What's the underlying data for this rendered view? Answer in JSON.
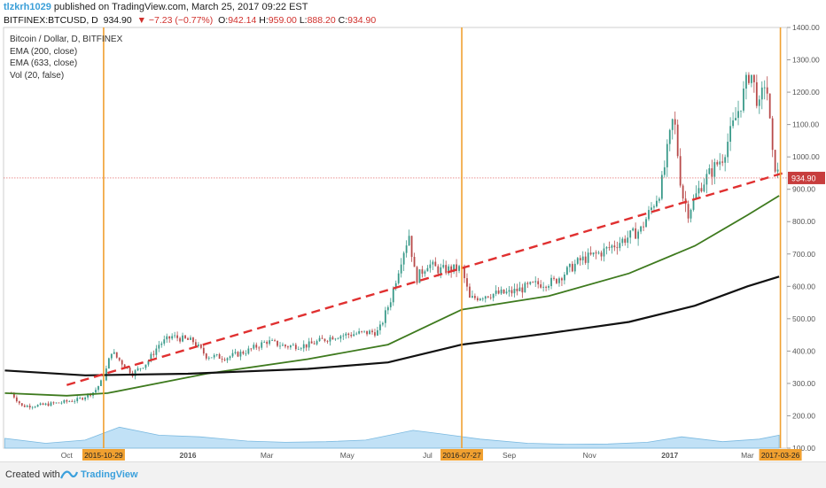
{
  "header": {
    "author": "tlzkrh1029",
    "published_text": "published on TradingView.com, March 25, 2017 09:22 EST",
    "symbol": "BITFINEX:BTCUSD, D",
    "last": "934.90",
    "change": "▼ −7.23 (−0.77%)",
    "o_label": "O:",
    "o_value": "942.14",
    "h_label": "H:",
    "h_value": "959.00",
    "l_label": "L:",
    "l_value": "888.20",
    "c_label": "C:",
    "c_value": "934.90"
  },
  "legend": {
    "title": "Bitcoin / Dollar, D, BITFINEX",
    "ema200": "EMA (200, close)",
    "ema633": "EMA (633, close)",
    "vol": "Vol (20, false)"
  },
  "footer": {
    "created_with": "Created with",
    "brand": "TradingView"
  },
  "colors": {
    "up": "#3a9a8a",
    "down": "#b84a4a",
    "ema200": "#3e7a1e",
    "ema633": "#111111",
    "trend": "#e03030",
    "marker": "#f0a030",
    "price_line": "#e05050",
    "volume": "#8ec9ee"
  },
  "chart_data": {
    "type": "candlestick",
    "title": "Bitcoin / Dollar, D, BITFINEX",
    "ylim": [
      100,
      1400
    ],
    "y_ticks": [
      "1400.00",
      "1300.00",
      "1200.00",
      "1100.00",
      "1000.00",
      "900.00",
      "800.00",
      "700.00",
      "600.00",
      "500.00",
      "400.00",
      "300.00",
      "200.00",
      "100.00"
    ],
    "x_ticks": [
      "Oct",
      "2015-10-29",
      "2016",
      "Mar",
      "May",
      "Jul",
      "2016-07-27",
      "Sep",
      "Nov",
      "2017",
      "Mar",
      "2017-03-26"
    ],
    "last_price_label": "934.90",
    "vertical_markers": [
      "2015-10-29",
      "2016-07-27",
      "2017-03-26"
    ],
    "price_path": [
      [
        "2015-08-20",
        270
      ],
      [
        "2015-08-28",
        230
      ],
      [
        "2015-09-10",
        232
      ],
      [
        "2015-09-25",
        240
      ],
      [
        "2015-10-10",
        250
      ],
      [
        "2015-10-22",
        275
      ],
      [
        "2015-10-29",
        315
      ],
      [
        "2015-11-04",
        400
      ],
      [
        "2015-11-08",
        380
      ],
      [
        "2015-11-20",
        330
      ],
      [
        "2015-12-01",
        365
      ],
      [
        "2015-12-10",
        420
      ],
      [
        "2015-12-20",
        445
      ],
      [
        "2016-01-05",
        430
      ],
      [
        "2016-01-15",
        385
      ],
      [
        "2016-01-30",
        380
      ],
      [
        "2016-02-15",
        400
      ],
      [
        "2016-03-01",
        430
      ],
      [
        "2016-03-15",
        415
      ],
      [
        "2016-04-01",
        418
      ],
      [
        "2016-04-20",
        445
      ],
      [
        "2016-05-10",
        455
      ],
      [
        "2016-05-25",
        460
      ],
      [
        "2016-06-03",
        560
      ],
      [
        "2016-06-12",
        700
      ],
      [
        "2016-06-17",
        760
      ],
      [
        "2016-06-22",
        620
      ],
      [
        "2016-07-01",
        670
      ],
      [
        "2016-07-10",
        650
      ],
      [
        "2016-07-27",
        655
      ],
      [
        "2016-08-02",
        560
      ],
      [
        "2016-08-15",
        575
      ],
      [
        "2016-09-01",
        580
      ],
      [
        "2016-09-20",
        605
      ],
      [
        "2016-10-05",
        615
      ],
      [
        "2016-10-25",
        680
      ],
      [
        "2016-11-10",
        705
      ],
      [
        "2016-11-25",
        740
      ],
      [
        "2016-12-10",
        775
      ],
      [
        "2016-12-25",
        900
      ],
      [
        "2017-01-04",
        1130
      ],
      [
        "2017-01-10",
        890
      ],
      [
        "2017-01-15",
        830
      ],
      [
        "2017-01-25",
        915
      ],
      [
        "2017-02-10",
        1000
      ],
      [
        "2017-02-25",
        1180
      ],
      [
        "2017-03-03",
        1270
      ],
      [
        "2017-03-10",
        1150
      ],
      [
        "2017-03-15",
        1250
      ],
      [
        "2017-03-20",
        1000
      ],
      [
        "2017-03-25",
        935
      ]
    ],
    "series": [
      {
        "name": "EMA (200, close)",
        "points": [
          [
            "2015-08-15",
            270
          ],
          [
            "2015-10-01",
            262
          ],
          [
            "2015-11-01",
            270
          ],
          [
            "2016-01-15",
            330
          ],
          [
            "2016-04-01",
            375
          ],
          [
            "2016-06-01",
            420
          ],
          [
            "2016-07-27",
            528
          ],
          [
            "2016-10-01",
            570
          ],
          [
            "2016-12-01",
            640
          ],
          [
            "2017-01-20",
            725
          ],
          [
            "2017-03-01",
            820
          ],
          [
            "2017-03-25",
            880
          ]
        ]
      },
      {
        "name": "EMA (633, close)",
        "points": [
          [
            "2015-08-15",
            340
          ],
          [
            "2015-10-15",
            325
          ],
          [
            "2016-01-01",
            330
          ],
          [
            "2016-04-01",
            345
          ],
          [
            "2016-06-01",
            365
          ],
          [
            "2016-07-27",
            420
          ],
          [
            "2016-10-01",
            455
          ],
          [
            "2016-12-01",
            490
          ],
          [
            "2017-01-20",
            540
          ],
          [
            "2017-03-01",
            600
          ],
          [
            "2017-03-25",
            630
          ]
        ]
      }
    ],
    "trendline": [
      [
        "2015-10-01",
        295
      ],
      [
        "2017-03-28",
        950
      ]
    ],
    "volume_area": [
      [
        "2015-08-15",
        130
      ],
      [
        "2015-09-15",
        115
      ],
      [
        "2015-10-15",
        125
      ],
      [
        "2015-11-10",
        165
      ],
      [
        "2015-12-10",
        140
      ],
      [
        "2016-01-10",
        135
      ],
      [
        "2016-02-15",
        122
      ],
      [
        "2016-03-15",
        118
      ],
      [
        "2016-04-15",
        120
      ],
      [
        "2016-05-15",
        125
      ],
      [
        "2016-06-20",
        155
      ],
      [
        "2016-07-10",
        145
      ],
      [
        "2016-08-10",
        128
      ],
      [
        "2016-09-15",
        115
      ],
      [
        "2016-10-15",
        112
      ],
      [
        "2016-11-15",
        113
      ],
      [
        "2016-12-15",
        118
      ],
      [
        "2017-01-10",
        135
      ],
      [
        "2017-02-10",
        120
      ],
      [
        "2017-03-10",
        128
      ],
      [
        "2017-03-25",
        140
      ]
    ]
  }
}
